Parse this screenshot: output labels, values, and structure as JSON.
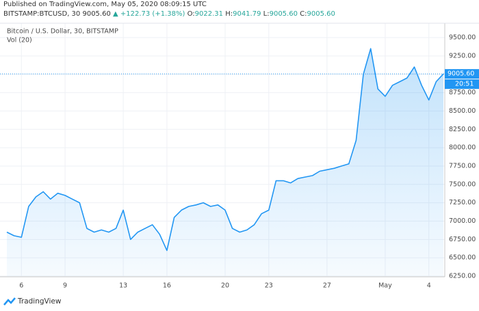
{
  "header": {
    "published": "Published on TradingView.com, May 05, 2020 08:09:15 UTC",
    "symbol": "BITSTAMP:BTCUSD, 30",
    "price": "9005.60",
    "change": "▲ +122.73 (+1.38%)",
    "ohlc": [
      {
        "key": "O:",
        "value": "9022.31"
      },
      {
        "key": "H:",
        "value": "9041.79"
      },
      {
        "key": "L:",
        "value": "9005.60"
      },
      {
        "key": "C:",
        "value": "9005.60"
      }
    ],
    "time_badge": "20:51",
    "brand": "TradingView"
  },
  "chart_data": {
    "type": "area",
    "title": "Bitcoin / U.S. Dollar, 30, BITSTAMP",
    "subtitle": "Vol (20)",
    "color": "#2196f3",
    "categories": [
      null,
      null,
      "6",
      null,
      null,
      null,
      null,
      null,
      "9",
      null,
      null,
      null,
      null,
      null,
      null,
      null,
      "13",
      null,
      null,
      null,
      null,
      null,
      "16",
      null,
      null,
      null,
      null,
      null,
      null,
      null,
      "20",
      null,
      null,
      null,
      null,
      null,
      "23",
      null,
      null,
      null,
      null,
      null,
      null,
      null,
      "27",
      null,
      null,
      null,
      null,
      null,
      null,
      null,
      "May",
      null,
      null,
      null,
      null,
      null,
      "4",
      null,
      null
    ],
    "values": [
      6850,
      6800,
      6780,
      7200,
      7330,
      7400,
      7300,
      7380,
      7350,
      7300,
      7250,
      6900,
      6850,
      6880,
      6850,
      6900,
      7150,
      6750,
      6850,
      6900,
      6950,
      6820,
      6600,
      7050,
      7150,
      7200,
      7220,
      7250,
      7200,
      7220,
      7150,
      6900,
      6850,
      6880,
      6950,
      7100,
      7150,
      7550,
      7550,
      7520,
      7580,
      7600,
      7620,
      7680,
      7700,
      7720,
      7750,
      7780,
      8100,
      9000,
      9350,
      8800,
      8700,
      8850,
      8900,
      8950,
      9100,
      8850,
      8650,
      8900,
      9005.6
    ],
    "last_price": {
      "value": 9005.6,
      "label": "9005.60"
    },
    "ylim": [
      6250,
      9640
    ],
    "yticks": [
      {
        "value": 6250,
        "label": "6250.00"
      },
      {
        "value": 6500,
        "label": "6500.00"
      },
      {
        "value": 6750,
        "label": "6750.00"
      },
      {
        "value": 7000,
        "label": "7000.00"
      },
      {
        "value": 7250,
        "label": "7250.00"
      },
      {
        "value": 7500,
        "label": "7500.00"
      },
      {
        "value": 7750,
        "label": "7750.00"
      },
      {
        "value": 8000,
        "label": "8000.00"
      },
      {
        "value": 8250,
        "label": "8250.00"
      },
      {
        "value": 8500,
        "label": "8500.00"
      },
      {
        "value": 8750,
        "label": "8750.00"
      },
      {
        "value": 9000,
        "label": "9000.00"
      },
      {
        "value": 9250,
        "label": "9250.00"
      },
      {
        "value": 9500,
        "label": "9500.00"
      }
    ],
    "grid": true
  }
}
